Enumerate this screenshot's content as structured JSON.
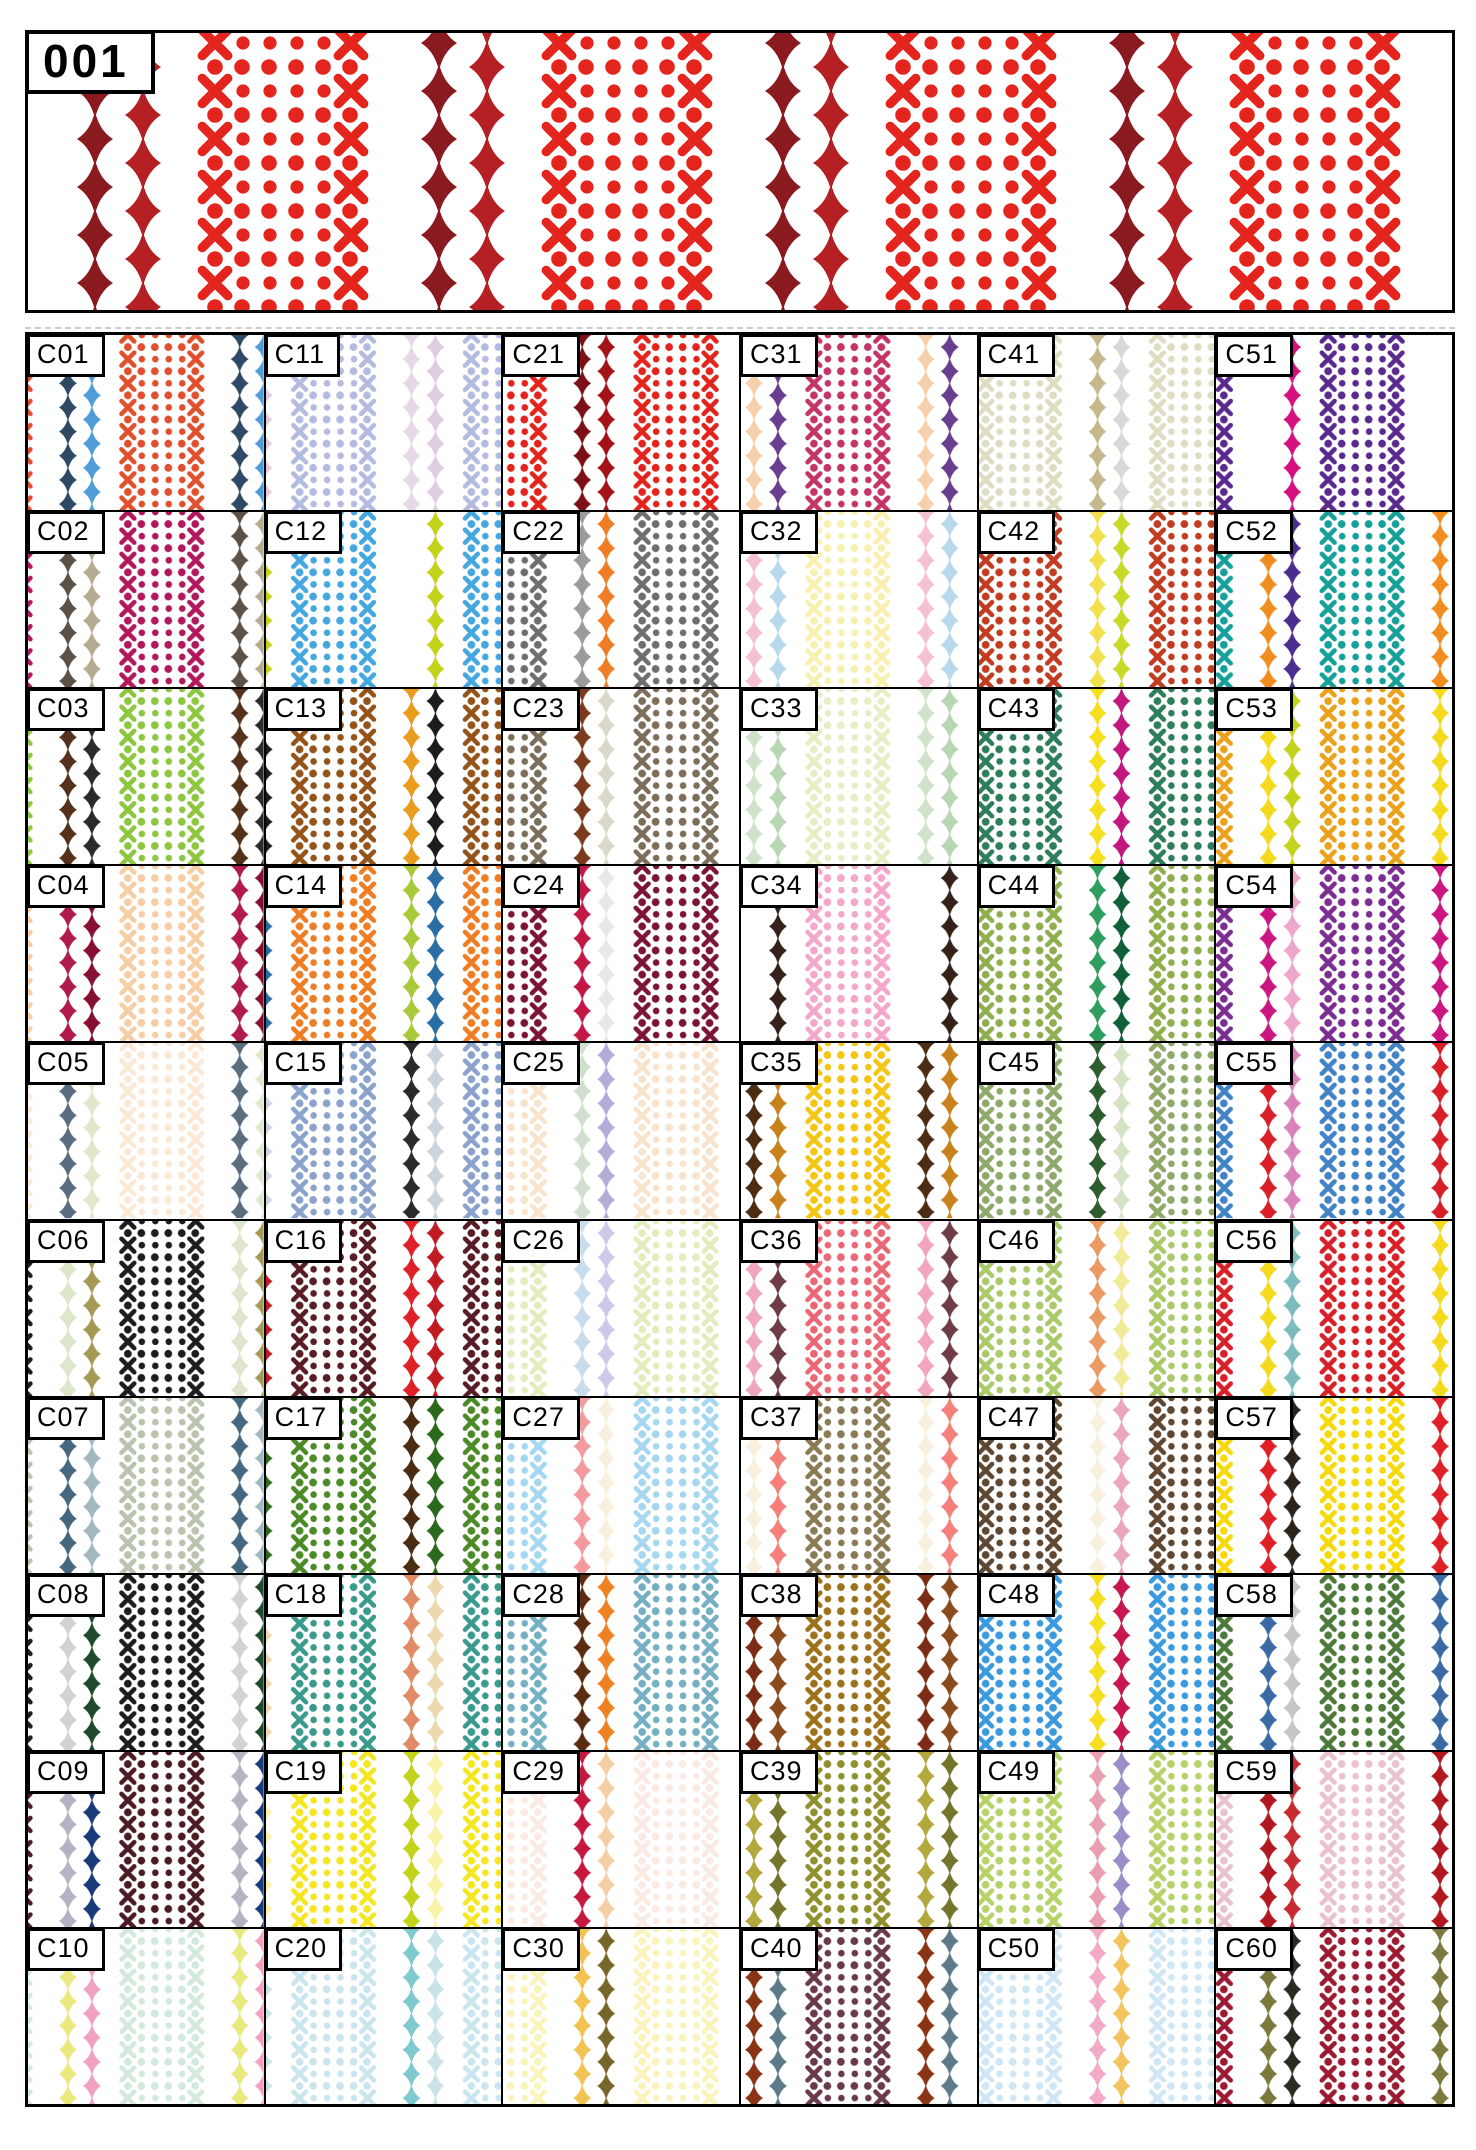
{
  "banner": {
    "title": "001",
    "diamond1": "#8a1a20",
    "diamond2": "#b52025",
    "block": "#e4251d"
  },
  "grid": {
    "columns": 6,
    "rows": 10
  },
  "cells": [
    {
      "id": "C01",
      "diamond1": "#2e4964",
      "diamond2": "#4e9dd8",
      "block": "#e0502e"
    },
    {
      "id": "C02",
      "diamond1": "#5b5148",
      "diamond2": "#b5ab91",
      "block": "#b2185c"
    },
    {
      "id": "C03",
      "diamond1": "#54301d",
      "diamond2": "#2b2b2b",
      "block": "#8dc63f"
    },
    {
      "id": "C04",
      "diamond1": "#b01a4c",
      "diamond2": "#871032",
      "block": "#f6cda4"
    },
    {
      "id": "C05",
      "diamond1": "#5a6c80",
      "diamond2": "#dfe8cc",
      "block": "#fbe9d8"
    },
    {
      "id": "C06",
      "diamond1": "#dbe6cb",
      "diamond2": "#a59a55",
      "block": "#1d1d1d"
    },
    {
      "id": "C07",
      "diamond1": "#46687e",
      "diamond2": "#a2b8c0",
      "block": "#b9c3ae"
    },
    {
      "id": "C08",
      "diamond1": "#d2d2d2",
      "diamond2": "#1d4a2d",
      "block": "#1d1d1d"
    },
    {
      "id": "C09",
      "diamond1": "#b3b3c6",
      "diamond2": "#1a3a7c",
      "block": "#4c1c24"
    },
    {
      "id": "C10",
      "diamond1": "#eae87e",
      "diamond2": "#f2a0c2",
      "block": "#d3e9dc"
    },
    {
      "id": "C11",
      "diamond1": "#e7d7e7",
      "diamond2": "#dfcbe2",
      "block": "#b3bce0"
    },
    {
      "id": "C12",
      "diamond1": "#ffffff",
      "diamond2": "#c3d31c",
      "block": "#45a7e0"
    },
    {
      "id": "C13",
      "diamond1": "#ea9c1e",
      "diamond2": "#1c1c1c",
      "block": "#935319"
    },
    {
      "id": "C14",
      "diamond1": "#a9c93a",
      "diamond2": "#2a6da4",
      "block": "#ee7d23"
    },
    {
      "id": "C15",
      "diamond1": "#2b2b2b",
      "diamond2": "#ccd3de",
      "block": "#8ba3cc"
    },
    {
      "id": "C16",
      "diamond1": "#e02027",
      "diamond2": "#c11b22",
      "block": "#571c24"
    },
    {
      "id": "C17",
      "diamond1": "#4a2c12",
      "diamond2": "#2d691d",
      "block": "#4c8a28"
    },
    {
      "id": "C18",
      "diamond1": "#e08a66",
      "diamond2": "#ecd9ae",
      "block": "#3a9a8c"
    },
    {
      "id": "C19",
      "diamond1": "#c3d31c",
      "diamond2": "#f8f3a6",
      "block": "#f5e625"
    },
    {
      "id": "C20",
      "diamond1": "#7ecace",
      "diamond2": "#c9e3e9",
      "block": "#cbe5ee"
    },
    {
      "id": "C21",
      "diamond1": "#7c1016",
      "diamond2": "#a31218",
      "block": "#e3231c"
    },
    {
      "id": "C22",
      "diamond1": "#9b9b9b",
      "diamond2": "#ee7d23",
      "block": "#6e6e6e"
    },
    {
      "id": "C23",
      "diamond1": "#7c3a1c",
      "diamond2": "#dcd8c8",
      "block": "#7c6e5a"
    },
    {
      "id": "C24",
      "diamond1": "#c21845",
      "diamond2": "#e8e8e8",
      "block": "#7c1535"
    },
    {
      "id": "C25",
      "diamond1": "#cfe0cc",
      "diamond2": "#b3abd8",
      "block": "#f9e3cd"
    },
    {
      "id": "C26",
      "diamond1": "#c9dcec",
      "diamond2": "#cdc9e6",
      "block": "#e3ecbc"
    },
    {
      "id": "C27",
      "diamond1": "#f29a9e",
      "diamond2": "#f8f0dc",
      "block": "#a5d8f0"
    },
    {
      "id": "C28",
      "diamond1": "#5c2c12",
      "diamond2": "#f08122",
      "block": "#74b0c2"
    },
    {
      "id": "C29",
      "diamond1": "#c6183e",
      "diamond2": "#f6cda4",
      "block": "#faeae2"
    },
    {
      "id": "C30",
      "diamond1": "#f2c353",
      "diamond2": "#77662a",
      "block": "#faf3bc"
    },
    {
      "id": "C31",
      "diamond1": "#f6d0ab",
      "diamond2": "#6a3d8f",
      "block": "#c43467"
    },
    {
      "id": "C32",
      "diamond1": "#f5c0d0",
      "diamond2": "#b8d8ee",
      "block": "#f8f0b0"
    },
    {
      "id": "C33",
      "diamond1": "#cfe3c8",
      "diamond2": "#b9d6b2",
      "block": "#e9edc6"
    },
    {
      "id": "C34",
      "diamond1": "#ffffff",
      "diamond2": "#33221a",
      "block": "#f2a7cb"
    },
    {
      "id": "C35",
      "diamond1": "#4c2c12",
      "diamond2": "#c8821c",
      "block": "#f4c515"
    },
    {
      "id": "C36",
      "diamond1": "#f2a6bc",
      "diamond2": "#6d3c44",
      "block": "#ea6875"
    },
    {
      "id": "C37",
      "diamond1": "#f8f0dc",
      "diamond2": "#f57f7a",
      "block": "#8a7a55"
    },
    {
      "id": "C38",
      "diamond1": "#7c2c14",
      "diamond2": "#8a4a1e",
      "block": "#9c731c"
    },
    {
      "id": "C39",
      "diamond1": "#b2a83c",
      "diamond2": "#74742a",
      "block": "#90902e"
    },
    {
      "id": "C40",
      "diamond1": "#8a3414",
      "diamond2": "#5c7a8a",
      "block": "#6a3a4c"
    },
    {
      "id": "C41",
      "diamond1": "#c5b88c",
      "diamond2": "#d8d8d8",
      "block": "#deddc2"
    },
    {
      "id": "C42",
      "diamond1": "#f2e14e",
      "diamond2": "#c6da28",
      "block": "#c13c20"
    },
    {
      "id": "C43",
      "diamond1": "#f6df1e",
      "diamond2": "#c2187e",
      "block": "#2e7d5b"
    },
    {
      "id": "C44",
      "diamond1": "#2e9e5e",
      "diamond2": "#0f5f38",
      "block": "#8fae4e"
    },
    {
      "id": "C45",
      "diamond1": "#2d5c2d",
      "diamond2": "#d5e3c5",
      "block": "#8fa96a"
    },
    {
      "id": "C46",
      "diamond1": "#eb9a64",
      "diamond2": "#f2ea96",
      "block": "#a9c96a"
    },
    {
      "id": "C47",
      "diamond1": "#f8f0dc",
      "diamond2": "#eba6bc",
      "block": "#5f4732"
    },
    {
      "id": "C48",
      "diamond1": "#f5df20",
      "diamond2": "#c6184e",
      "block": "#3b9ade"
    },
    {
      "id": "C49",
      "diamond1": "#e8a0b0",
      "diamond2": "#9c8cc8",
      "block": "#b5d368"
    },
    {
      "id": "C50",
      "diamond1": "#f2aac6",
      "diamond2": "#f2c45e",
      "block": "#cfe6f5"
    },
    {
      "id": "C51",
      "diamond1": "#ffffff",
      "diamond2": "#d60f7e",
      "block": "#5b2a8e"
    },
    {
      "id": "C52",
      "diamond1": "#f18c1f",
      "diamond2": "#4b2d90",
      "block": "#16a09a"
    },
    {
      "id": "C53",
      "diamond1": "#f4d91c",
      "diamond2": "#c3d31c",
      "block": "#eaa21c"
    },
    {
      "id": "C54",
      "diamond1": "#cb1580",
      "diamond2": "#efa6cb",
      "block": "#7c2d92"
    },
    {
      "id": "C55",
      "diamond1": "#d81f28",
      "diamond2": "#d981b8",
      "block": "#4282c6"
    },
    {
      "id": "C56",
      "diamond1": "#f4d91c",
      "diamond2": "#7cbcbc",
      "block": "#d92028"
    },
    {
      "id": "C57",
      "diamond1": "#e02027",
      "diamond2": "#2b241c",
      "block": "#f5d90a"
    },
    {
      "id": "C58",
      "diamond1": "#3a6aa4",
      "diamond2": "#c6c6c6",
      "block": "#4c7a3a"
    },
    {
      "id": "C59",
      "diamond1": "#b2181f",
      "diamond2": "#c62b30",
      "block": "#eac2cd"
    },
    {
      "id": "C60",
      "diamond1": "#7a7a3c",
      "diamond2": "#2b2b22",
      "block": "#9c1b33"
    }
  ]
}
